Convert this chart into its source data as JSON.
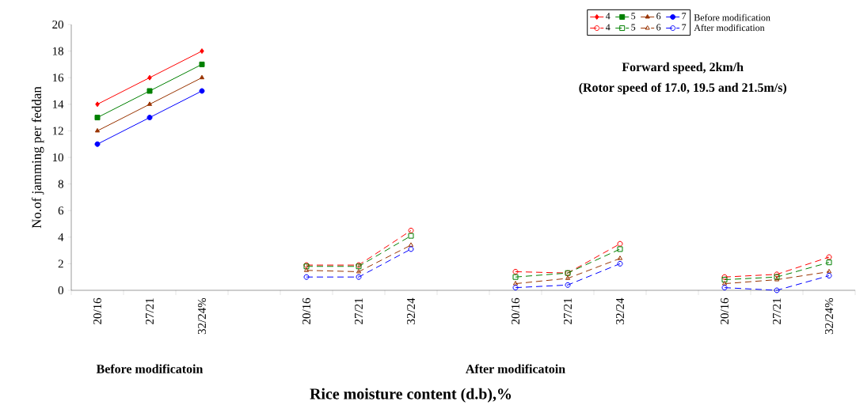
{
  "chart_data": {
    "type": "line",
    "xlabel": "Rice moisture content (d.b),%",
    "ylabel": "No.of jamming per feddan",
    "categories": [
      "20/16",
      "27/21",
      "32/24%",
      null,
      "20/16",
      "27/21",
      "32/24",
      null,
      "20/16",
      "27/21",
      "32/24",
      null,
      "20/16",
      "27/21",
      "32/24%"
    ],
    "series": [
      {
        "name": "4",
        "color": "#ff0000",
        "marker": "diamond",
        "line_style": "solid",
        "values": [
          14,
          16,
          18,
          null,
          null,
          null,
          null,
          null,
          null,
          null,
          null,
          null,
          null,
          null,
          null
        ]
      },
      {
        "name": "5",
        "color": "#008000",
        "marker": "square",
        "line_style": "solid",
        "values": [
          13,
          15,
          17,
          null,
          null,
          null,
          null,
          null,
          null,
          null,
          null,
          null,
          null,
          null,
          null
        ]
      },
      {
        "name": "6",
        "color": "#993300",
        "marker": "triangle",
        "line_style": "solid",
        "values": [
          12,
          14,
          16,
          null,
          null,
          null,
          null,
          null,
          null,
          null,
          null,
          null,
          null,
          null,
          null
        ]
      },
      {
        "name": "7",
        "color": "#0000ff",
        "marker": "circle",
        "line_style": "solid",
        "values": [
          11,
          13,
          15,
          null,
          null,
          null,
          null,
          null,
          null,
          null,
          null,
          null,
          null,
          null,
          null
        ]
      },
      {
        "name": "4",
        "color": "#ff0000",
        "marker": "circle",
        "line_style": "dashed",
        "values": [
          null,
          null,
          null,
          null,
          1.9,
          1.9,
          4.5,
          null,
          1.4,
          1.3,
          3.5,
          null,
          1.0,
          1.2,
          2.5
        ]
      },
      {
        "name": "5",
        "color": "#008000",
        "marker": "square",
        "line_style": "dashed",
        "values": [
          null,
          null,
          null,
          null,
          1.8,
          1.8,
          4.1,
          null,
          1.0,
          1.3,
          3.1,
          null,
          0.8,
          1.0,
          2.1
        ]
      },
      {
        "name": "6",
        "color": "#993300",
        "marker": "triangle",
        "line_style": "dashed",
        "values": [
          null,
          null,
          null,
          null,
          1.5,
          1.4,
          3.4,
          null,
          0.5,
          0.9,
          2.4,
          null,
          0.5,
          0.8,
          1.4
        ]
      },
      {
        "name": "7",
        "color": "#0000ff",
        "marker": "circle",
        "line_style": "dashed",
        "values": [
          null,
          null,
          null,
          null,
          1.0,
          1.0,
          3.1,
          null,
          0.2,
          0.4,
          2.0,
          null,
          0.2,
          0.0,
          1.1
        ]
      }
    ],
    "ylim": [
      0,
      20
    ],
    "yticks": [
      0,
      2,
      4,
      6,
      8,
      10,
      12,
      14,
      16,
      18,
      20
    ],
    "grid": false,
    "legend": "top right",
    "annotations": [
      "Forward speed, 2km/h",
      "(Rotor speed of 17.0, 19.5 and 21.5m/s)",
      "Before modificatoin",
      "After modificatoin",
      "Before modification",
      "After modification"
    ]
  }
}
